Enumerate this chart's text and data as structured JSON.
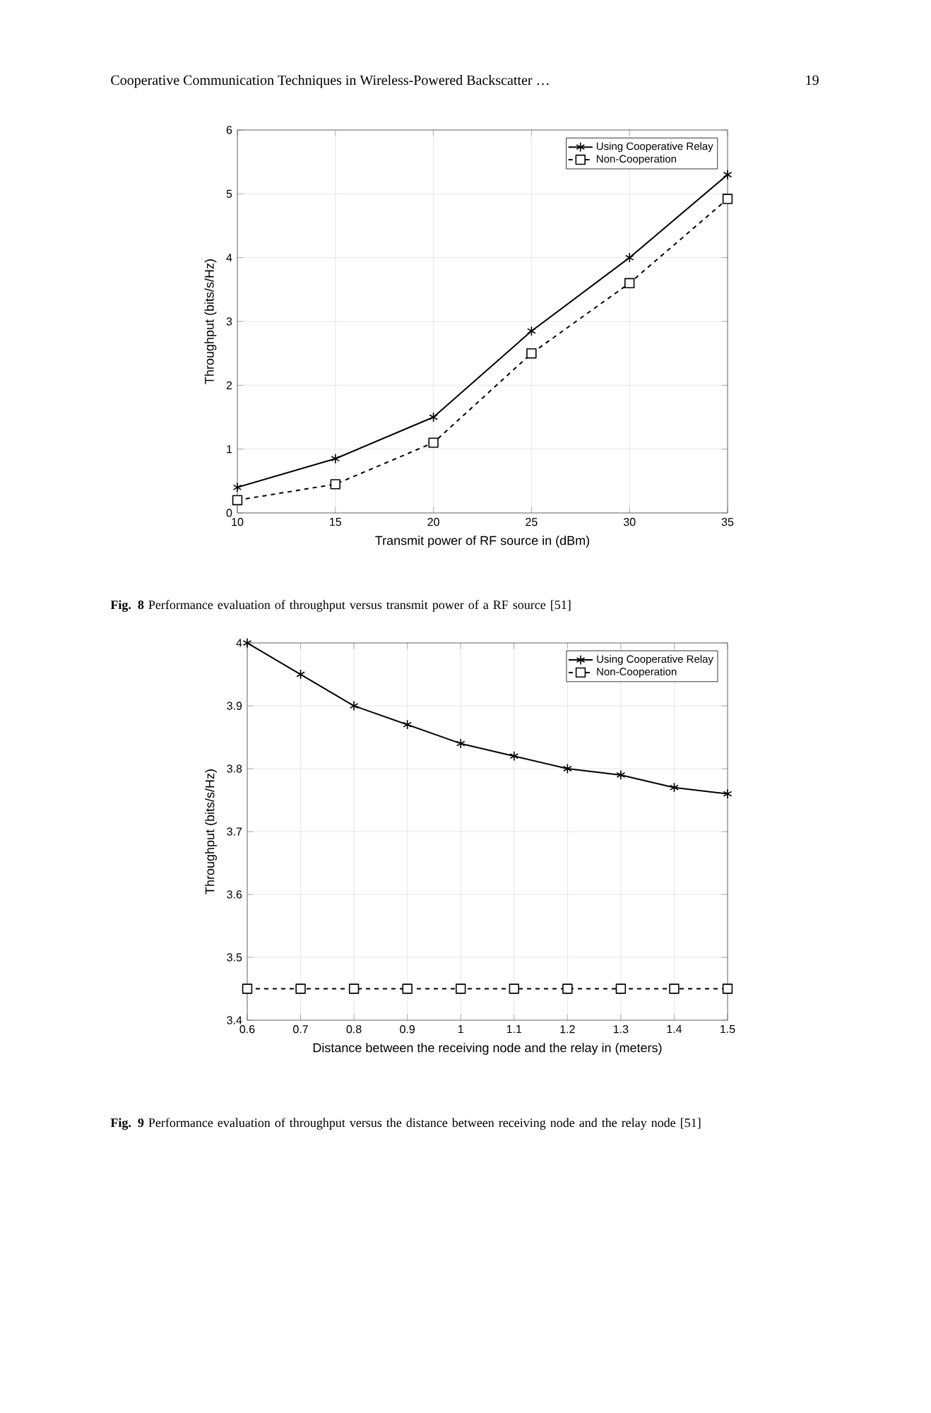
{
  "chart_data": [
    {
      "type": "line",
      "xlabel": "Transmit power of RF source in (dBm)",
      "ylabel": "Throughput (bits/s/Hz)",
      "annotations": [
        "Cooperative Communication Techniques in Wireless-Powered Backscatter …",
        "19",
        "**Fig. 8** Performance evaluation of throughput versus transmit power of a RF source [51]"
      ],
      "x": [
        10,
        15,
        20,
        25,
        30,
        35
      ],
      "series": [
        {
          "name": "Using Cooperative Relay",
          "color": "#000000",
          "marker": "cross",
          "line_style": "solid",
          "values": [
            0.4,
            0.85,
            1.5,
            2.85,
            4.0,
            5.3
          ]
        },
        {
          "name": "Non-Cooperation",
          "color": "#000000",
          "marker": "square",
          "line_style": "dashed",
          "values": [
            0.2,
            0.45,
            1.1,
            2.5,
            3.6,
            4.92
          ]
        }
      ],
      "xlim": [
        10,
        35
      ],
      "ylim": [
        0,
        6
      ],
      "xticks": [
        10,
        15,
        20,
        25,
        30,
        35
      ],
      "yticks": [
        0,
        1,
        2,
        3,
        4,
        5,
        6
      ],
      "grid": true,
      "legend": "top right"
    },
    {
      "type": "line",
      "xlabel": "Distance between the receiving node and the relay in (meters)",
      "ylabel": "Throughput (bits/s/Hz)",
      "annotations": [
        "**Fig. 9** Performance evaluation of throughput versus the distance between receiving node and the relay node [51]"
      ],
      "x": [
        0.6,
        0.7,
        0.8,
        0.9,
        1,
        1.1,
        1.2,
        1.3,
        1.4,
        1.5
      ],
      "series": [
        {
          "name": "Using Cooperative Relay",
          "color": "#000000",
          "marker": "cross",
          "line_style": "solid",
          "values": [
            4.0,
            3.95,
            3.9,
            3.87,
            3.84,
            3.82,
            3.8,
            3.79,
            3.77,
            3.76
          ]
        },
        {
          "name": "Non-Cooperation",
          "color": "#000000",
          "marker": "square",
          "line_style": "dashed",
          "values": [
            3.45,
            3.45,
            3.45,
            3.45,
            3.45,
            3.45,
            3.45,
            3.45,
            3.45,
            3.45
          ]
        }
      ],
      "xlim": [
        0.6,
        1.5
      ],
      "ylim": [
        3.4,
        4
      ],
      "xticks": [
        0.6,
        0.7,
        0.8,
        0.9,
        1,
        1.1,
        1.2,
        1.3,
        1.4,
        1.5
      ],
      "yticks": [
        3.4,
        3.5,
        3.6,
        3.7,
        3.8,
        3.9,
        4
      ],
      "grid": true,
      "legend": "top right"
    }
  ]
}
